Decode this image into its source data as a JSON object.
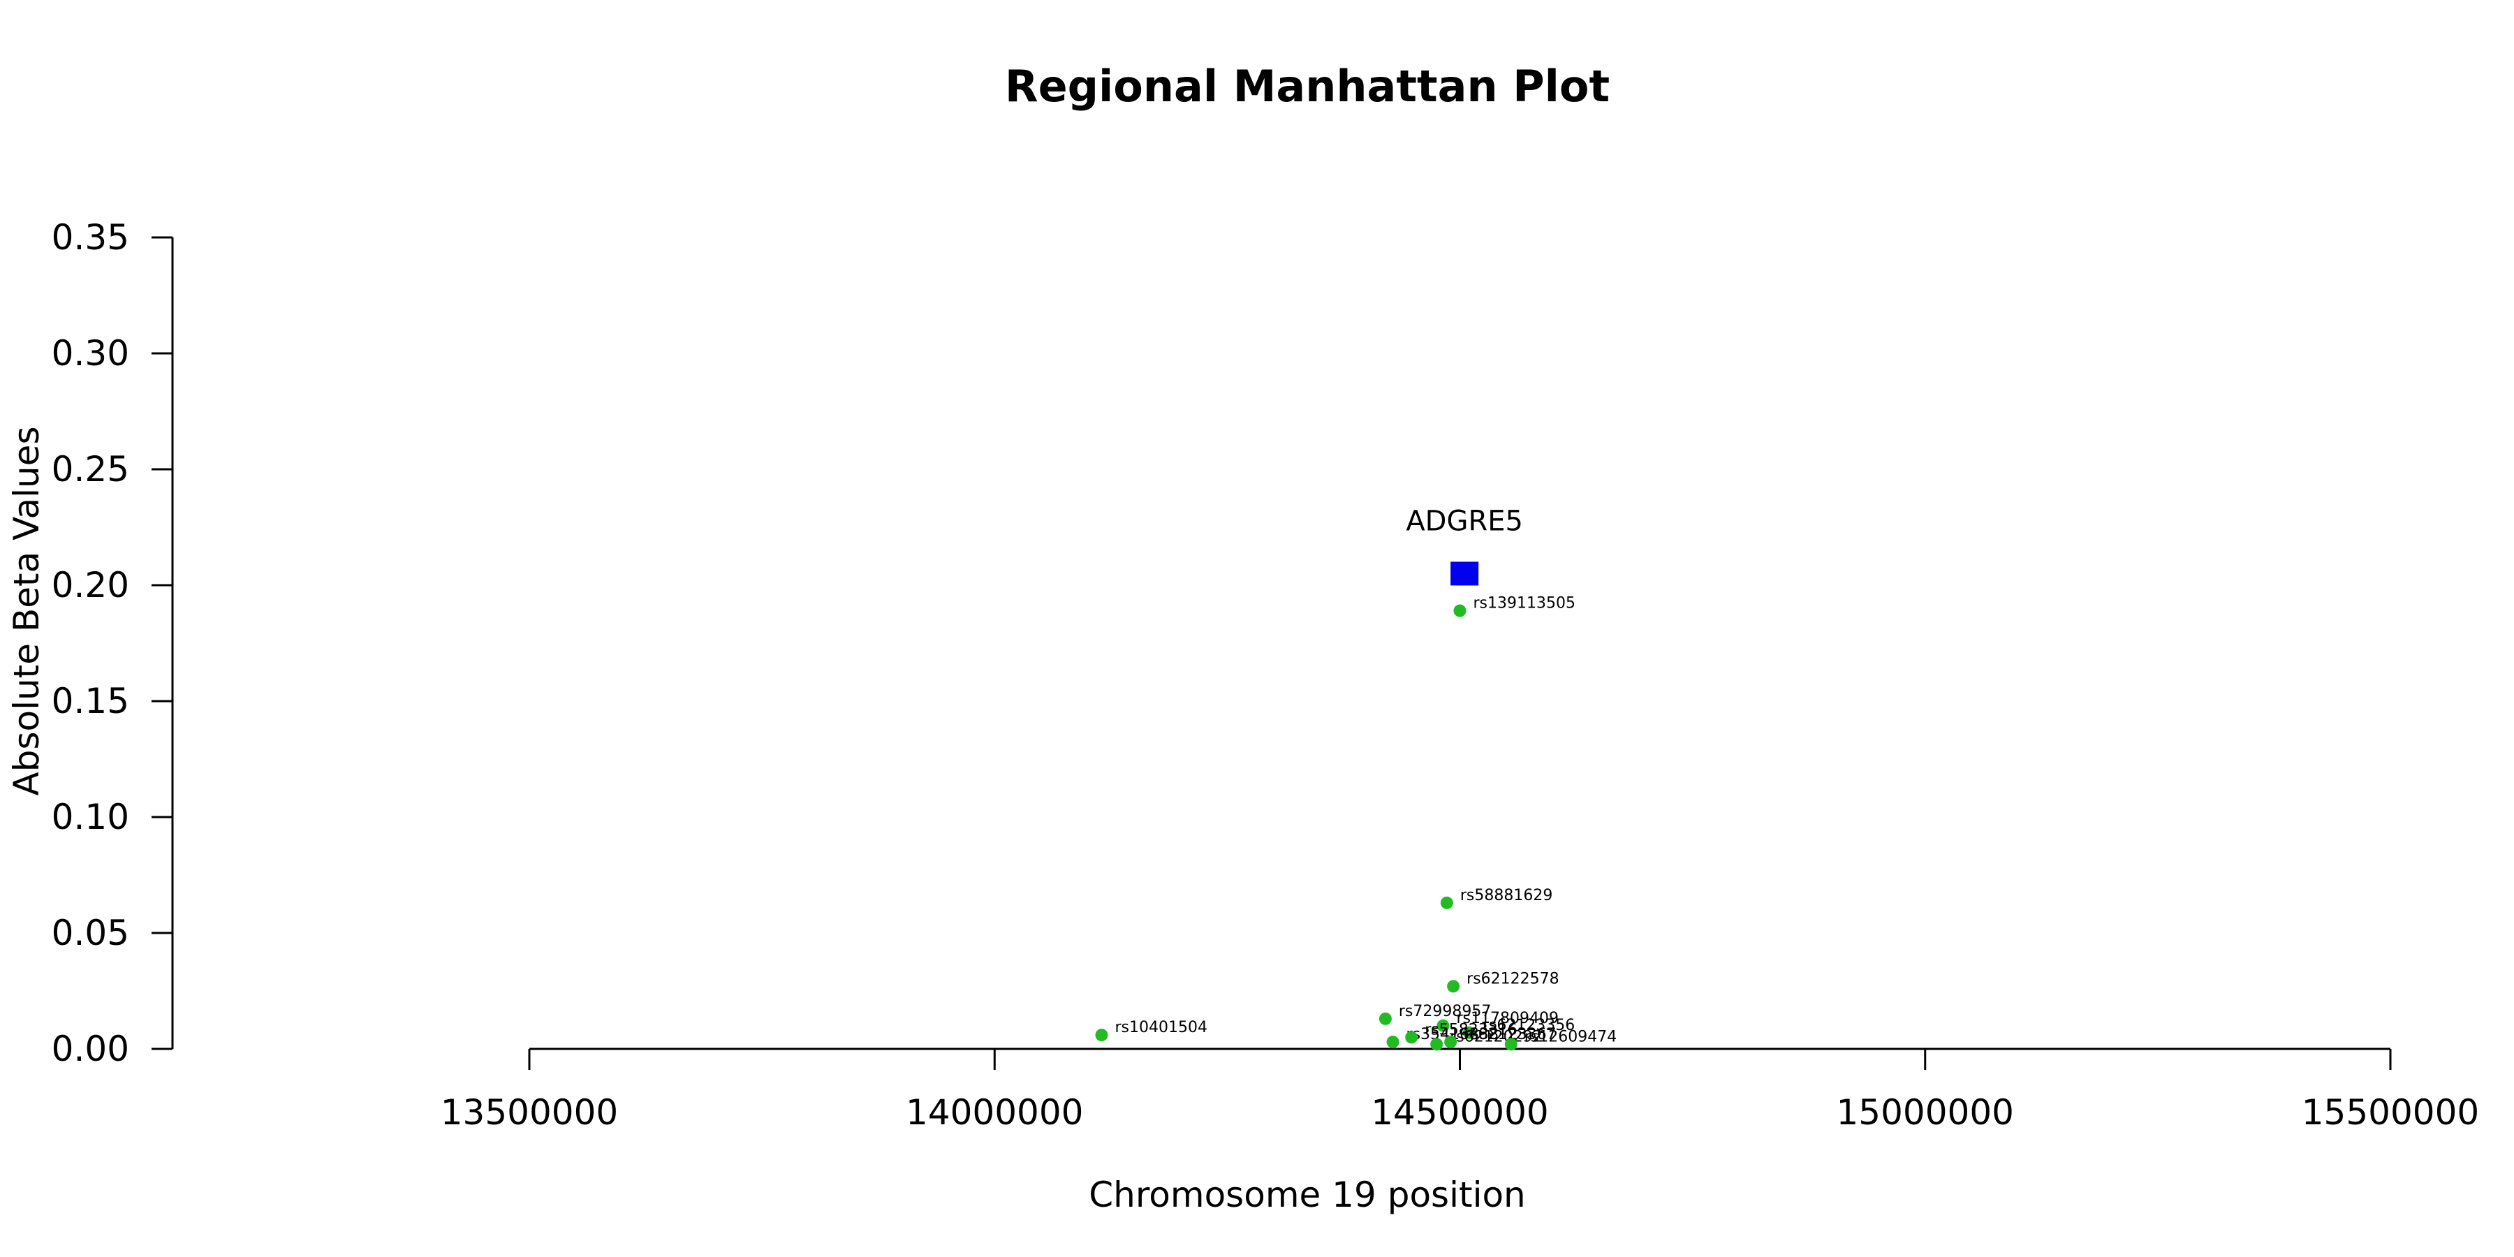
{
  "chart_data": {
    "type": "scatter",
    "title": "Regional Manhattan Plot",
    "xlabel": "Chromosome 19 position",
    "ylabel": "Absolute Beta Values",
    "xlim": [
      13500000,
      15500000
    ],
    "ylim": [
      0,
      0.35
    ],
    "x_ticks": [
      13500000,
      14000000,
      14500000,
      15000000,
      15500000
    ],
    "y_ticks": [
      0.0,
      0.05,
      0.1,
      0.15,
      0.2,
      0.25,
      0.3,
      0.35
    ],
    "y_tick_labels": [
      "0.00",
      "0.05",
      "0.10",
      "0.15",
      "0.20",
      "0.25",
      "0.30",
      "0.35"
    ],
    "gene": {
      "name": "ADGRE5",
      "x": 14505000,
      "y": 0.205,
      "color": "#0000ee"
    },
    "snp_color": "#22bb22",
    "snps": [
      {
        "id": "rs139113505",
        "x": 14500000,
        "y": 0.189
      },
      {
        "id": "rs58881629",
        "x": 14486000,
        "y": 0.063
      },
      {
        "id": "rs62122578",
        "x": 14493000,
        "y": 0.027
      },
      {
        "id": "rs72998957",
        "x": 14420000,
        "y": 0.013
      },
      {
        "id": "rs117809409",
        "x": 14482000,
        "y": 0.01
      },
      {
        "id": "rs62123356",
        "x": 14510000,
        "y": 0.007
      },
      {
        "id": "rs10401504",
        "x": 14115000,
        "y": 0.006
      },
      {
        "id": "rs35416838",
        "x": 14428000,
        "y": 0.003
      },
      {
        "id": "rs55823316",
        "x": 14448000,
        "y": 0.005
      },
      {
        "id": "rs62120292",
        "x": 14475000,
        "y": 0.002
      },
      {
        "id": "rs62123367",
        "x": 14490000,
        "y": 0.003
      },
      {
        "id": "rs12609474",
        "x": 14555000,
        "y": 0.002
      }
    ]
  }
}
